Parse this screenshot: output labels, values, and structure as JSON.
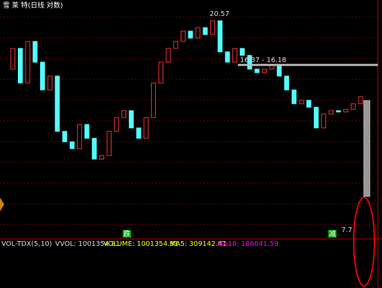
{
  "chart_data": {
    "type": "candlestick",
    "title": "雪 莱 特(日线 对数)",
    "values": [
      15.55,
      17.43,
      14.29,
      18.06,
      16.18,
      13.66,
      14.92,
      9.9,
      8.95,
      8.33,
      10.52,
      9.27,
      7.38,
      7.7,
      9.9,
      11.15,
      11.78,
      10.21,
      9.27,
      11.15,
      14.29,
      16.18,
      17.43,
      18.06,
      19.0,
      18.37,
      19.32,
      18.69,
      19.94,
      17.12,
      16.18,
      17.43,
      16.8,
      15.55,
      15.23,
      15.55,
      15.86,
      14.92,
      13.66,
      12.41,
      12.72,
      12.09,
      10.21,
      11.47,
      11.78,
      11.66,
      11.9,
      12.41,
      13.04
    ],
    "ylim": [
      0.5,
      21.2
    ],
    "log_scale": true,
    "grid": true,
    "up_color": "#ff3232",
    "down_color": "#54ffff",
    "annotations": {
      "high": "20.57",
      "range": "16.37 - 16.18",
      "low": "7.7",
      "signal_down": "跌",
      "signal_reduce": "减"
    },
    "volume_panel": {
      "title": "VOL-TDX(5,10)",
      "vvol": "VVOL: 1001354.81",
      "volume": "VOLUME: 1001354.81",
      "ma5": "MA5: 309142.41",
      "ma10": "MA10: 186041.59"
    }
  }
}
